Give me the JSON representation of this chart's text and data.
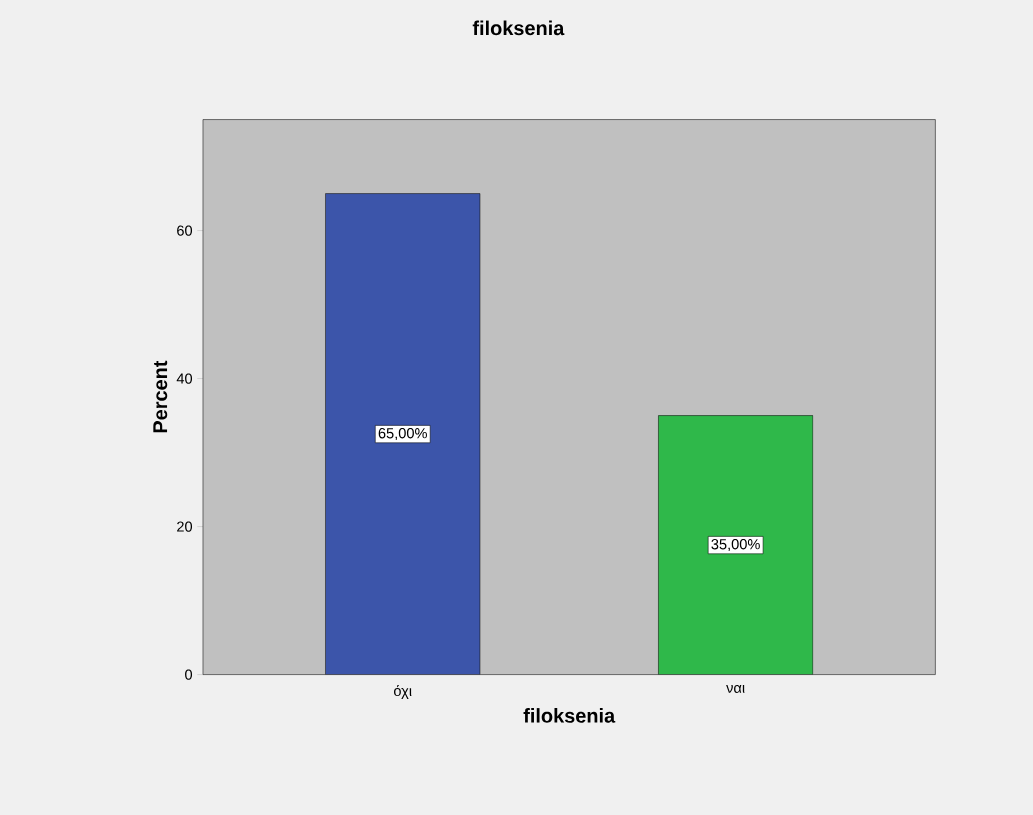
{
  "chart_data": {
    "type": "bar",
    "title": "filoksenia",
    "xlabel": "filoksenia",
    "ylabel": "Percent",
    "categories": [
      "όχι",
      "ναι"
    ],
    "values": [
      65,
      35
    ],
    "colors": [
      "#3c55aa",
      "#2fb84a"
    ],
    "value_labels": [
      "65,00%",
      "35,00%"
    ],
    "ylim": [
      0,
      75
    ],
    "yticks": [
      0,
      20,
      40,
      60
    ],
    "grid": false
  }
}
